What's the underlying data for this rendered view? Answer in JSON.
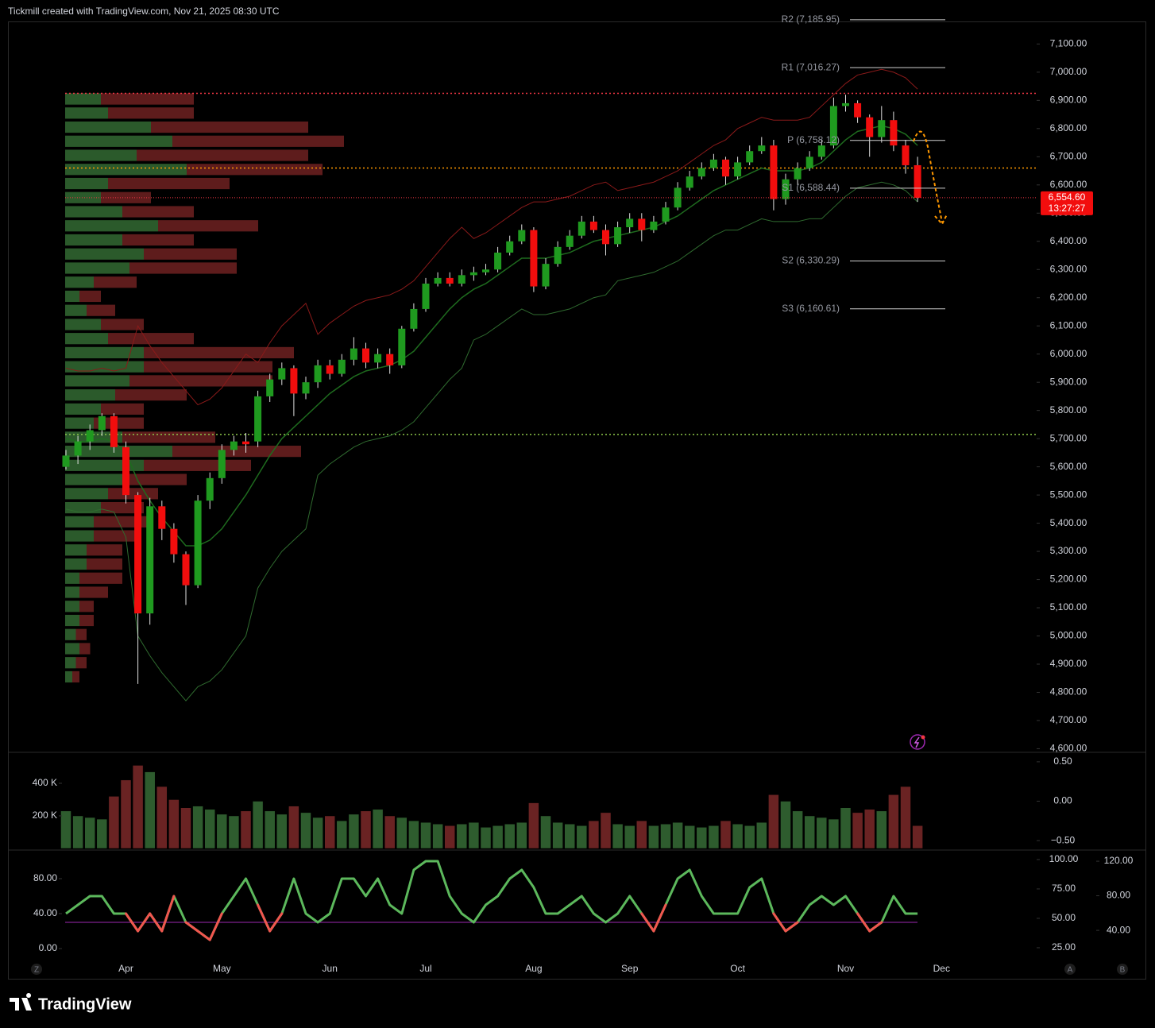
{
  "header": {
    "caption": "Tickmill created with TradingView.com, Nov 21, 2025 08:30 UTC"
  },
  "footer": {
    "brand": "TradingView"
  },
  "axis_buttons": {
    "left": "Z",
    "a": "A",
    "b": "B"
  },
  "chart_data": [
    {
      "type": "candlestick",
      "categories": [
        null,
        null,
        null,
        null,
        null,
        "Apr",
        null,
        null,
        null,
        null,
        null,
        null,
        null,
        "May",
        null,
        null,
        null,
        null,
        null,
        null,
        null,
        null,
        "Jun",
        null,
        null,
        null,
        null,
        null,
        null,
        null,
        "Jul",
        null,
        null,
        null,
        null,
        null,
        null,
        null,
        null,
        "Aug",
        null,
        null,
        null,
        null,
        null,
        null,
        null,
        "Sep",
        null,
        null,
        null,
        null,
        null,
        null,
        null,
        null,
        "Oct",
        null,
        null,
        null,
        null,
        null,
        null,
        null,
        null,
        "Nov",
        null,
        null,
        null,
        null,
        null,
        null,
        null,
        "Dec",
        null,
        null,
        null,
        null,
        null,
        null,
        null
      ],
      "open": [
        5600,
        5640,
        5690,
        5730,
        5780,
        5670,
        5500,
        5080,
        5460,
        5380,
        5290,
        5180,
        5480,
        5560,
        5660,
        5690,
        5690,
        5850,
        5910,
        5950,
        5860,
        5900,
        5960,
        5930,
        5980,
        6020,
        5970,
        6000,
        5960,
        6090,
        6160,
        6250,
        6270,
        6250,
        6280,
        6290,
        6300,
        6360,
        6400,
        6440,
        6240,
        6320,
        6380,
        6420,
        6470,
        6440,
        6390,
        6450,
        6480,
        6440,
        6470,
        6520,
        6590,
        6630,
        6660,
        6690,
        6630,
        6680,
        6720,
        6740,
        6550,
        6620,
        6660,
        6700,
        6740,
        6880,
        6890,
        6840,
        6770,
        6830,
        6740,
        6670,
        null,
        null,
        null,
        null,
        null,
        null,
        null,
        null,
        null
      ],
      "high": [
        5660,
        5710,
        5750,
        5790,
        5790,
        5690,
        5510,
        5490,
        5480,
        5400,
        5300,
        5500,
        5580,
        5680,
        5710,
        5720,
        5870,
        5930,
        5970,
        5960,
        5920,
        5980,
        5980,
        6000,
        6060,
        6040,
        6020,
        6020,
        6100,
        6180,
        6270,
        6290,
        6290,
        6300,
        6310,
        6320,
        6380,
        6420,
        6460,
        6450,
        6340,
        6400,
        6440,
        6490,
        6490,
        6460,
        6470,
        6500,
        6500,
        6490,
        6540,
        6610,
        6650,
        6680,
        6710,
        6700,
        6700,
        6740,
        6770,
        6760,
        6640,
        6680,
        6720,
        6760,
        6910,
        6920,
        6900,
        6850,
        6880,
        6860,
        6760,
        6700,
        null,
        null,
        null,
        null,
        null,
        null,
        null,
        null,
        null
      ],
      "low": [
        5590,
        5610,
        5660,
        5710,
        5650,
        5470,
        4830,
        5040,
        5340,
        5260,
        5110,
        5170,
        5450,
        5540,
        5640,
        5650,
        5670,
        5830,
        5890,
        5780,
        5840,
        5880,
        5910,
        5920,
        5960,
        5950,
        5950,
        5930,
        5950,
        6080,
        6150,
        6240,
        6240,
        6240,
        6260,
        6280,
        6290,
        6350,
        6390,
        6220,
        6230,
        6310,
        6370,
        6410,
        6430,
        6350,
        6380,
        6430,
        6400,
        6430,
        6460,
        6510,
        6580,
        6620,
        6650,
        6600,
        6620,
        6670,
        6710,
        6510,
        6530,
        6600,
        6650,
        6690,
        6730,
        6860,
        6820,
        6700,
        6750,
        6720,
        6640,
        6540,
        null,
        null,
        null,
        null,
        null,
        null,
        null,
        null,
        null
      ],
      "close": [
        5640,
        5690,
        5730,
        5780,
        5670,
        5500,
        5080,
        5460,
        5380,
        5290,
        5180,
        5480,
        5560,
        5660,
        5690,
        5680,
        5850,
        5910,
        5950,
        5860,
        5900,
        5960,
        5930,
        5980,
        6020,
        5970,
        6000,
        5960,
        6090,
        6160,
        6250,
        6270,
        6250,
        6280,
        6290,
        6300,
        6360,
        6400,
        6440,
        6240,
        6320,
        6380,
        6420,
        6470,
        6440,
        6390,
        6450,
        6480,
        6440,
        6470,
        6520,
        6590,
        6630,
        6660,
        6690,
        6630,
        6680,
        6720,
        6740,
        6550,
        6620,
        6660,
        6700,
        6740,
        6880,
        6890,
        6840,
        6770,
        6830,
        6740,
        6670,
        6554.6,
        null,
        null,
        null,
        null,
        null,
        null,
        null,
        null,
        null
      ],
      "up_color": "#1f9a1f",
      "down_color": "#f20d0d",
      "ylim": [
        4590,
        7180
      ],
      "yticks": [
        {
          "value": 4600,
          "label": "4,600.00"
        },
        {
          "value": 4700,
          "label": "4,700.00"
        },
        {
          "value": 4800,
          "label": "4,800.00"
        },
        {
          "value": 4900,
          "label": "4,900.00"
        },
        {
          "value": 5000,
          "label": "5,000.00"
        },
        {
          "value": 5100,
          "label": "5,100.00"
        },
        {
          "value": 5200,
          "label": "5,200.00"
        },
        {
          "value": 5300,
          "label": "5,300.00"
        },
        {
          "value": 5400,
          "label": "5,400.00"
        },
        {
          "value": 5500,
          "label": "5,500.00"
        },
        {
          "value": 5600,
          "label": "5,600.00"
        },
        {
          "value": 5700,
          "label": "5,700.00"
        },
        {
          "value": 5800,
          "label": "5,800.00"
        },
        {
          "value": 5900,
          "label": "5,900.00"
        },
        {
          "value": 6000,
          "label": "6,000.00"
        },
        {
          "value": 6100,
          "label": "6,100.00"
        },
        {
          "value": 6200,
          "label": "6,200.00"
        },
        {
          "value": 6300,
          "label": "6,300.00"
        },
        {
          "value": 6400,
          "label": "6,400.00"
        },
        {
          "value": 6500,
          "label": "6,500.00"
        },
        {
          "value": 6600,
          "label": "6,600.00"
        },
        {
          "value": 6700,
          "label": "6,700.00"
        },
        {
          "value": 6800,
          "label": "6,800.00"
        },
        {
          "value": 6900,
          "label": "6,900.00"
        },
        {
          "value": 7000,
          "label": "7,000.00"
        },
        {
          "value": 7100,
          "label": "7,100.00"
        }
      ],
      "grid": false,
      "overlays": [
        {
          "color": "#8b1a1a",
          "values": [
            5950,
            5940,
            5940,
            5950,
            5940,
            5950,
            6100,
            6030,
            5970,
            5920,
            5870,
            5820,
            5840,
            5880,
            5940,
            6000,
            5970,
            6040,
            6100,
            6140,
            6180,
            6070,
            6110,
            6140,
            6170,
            6190,
            6200,
            6210,
            6230,
            6260,
            6310,
            6360,
            6410,
            6450,
            6410,
            6430,
            6460,
            6490,
            6520,
            6540,
            6540,
            6550,
            6560,
            6580,
            6600,
            6610,
            6580,
            6590,
            6600,
            6610,
            6630,
            6650,
            6680,
            6710,
            6740,
            6760,
            6800,
            6820,
            6840,
            6830,
            6830,
            6830,
            6840,
            6880,
            6920,
            6960,
            6990,
            7000,
            7010,
            7000,
            6980,
            6940,
            null,
            null,
            null,
            null,
            null,
            null,
            null,
            null,
            null
          ]
        },
        {
          "color": "#1e6b1e",
          "values": [
            5700,
            5690,
            5690,
            5700,
            5690,
            5650,
            5550,
            5480,
            5420,
            5370,
            5320,
            5320,
            5340,
            5380,
            5440,
            5500,
            5570,
            5640,
            5700,
            5740,
            5780,
            5820,
            5860,
            5890,
            5920,
            5940,
            5950,
            5960,
            5980,
            6010,
            6060,
            6110,
            6160,
            6200,
            6230,
            6250,
            6280,
            6310,
            6340,
            6340,
            6340,
            6350,
            6360,
            6380,
            6400,
            6410,
            6420,
            6430,
            6440,
            6450,
            6470,
            6490,
            6520,
            6550,
            6580,
            6600,
            6620,
            6640,
            6660,
            6650,
            6650,
            6650,
            6660,
            6680,
            6720,
            6760,
            6790,
            6800,
            6810,
            6800,
            6780,
            6740,
            null,
            null,
            null,
            null,
            null,
            null,
            null,
            null,
            null
          ]
        },
        {
          "color": "#2f6b2f",
          "values": [
            5450,
            5440,
            5440,
            5450,
            5440,
            5350,
            5000,
            4930,
            4870,
            4820,
            4770,
            4820,
            4840,
            4880,
            4940,
            5000,
            5170,
            5240,
            5300,
            5340,
            5380,
            5570,
            5610,
            5640,
            5670,
            5690,
            5700,
            5710,
            5730,
            5760,
            5810,
            5860,
            5910,
            5950,
            6050,
            6070,
            6100,
            6130,
            6160,
            6140,
            6140,
            6150,
            6160,
            6180,
            6200,
            6210,
            6260,
            6270,
            6280,
            6290,
            6310,
            6330,
            6360,
            6390,
            6420,
            6440,
            6440,
            6460,
            6480,
            6470,
            6470,
            6470,
            6480,
            6480,
            6520,
            6560,
            6590,
            6600,
            6610,
            6600,
            6580,
            6540,
            null,
            null,
            null,
            null,
            null,
            null,
            null,
            null,
            null
          ]
        }
      ],
      "volume_profile": {
        "up_color": "#2b5a2b",
        "down_color": "#5e1c1c",
        "prices": [
          6900,
          6850,
          6800,
          6750,
          6700,
          6650,
          6600,
          6550,
          6500,
          6450,
          6400,
          6350,
          6300,
          6250,
          6200,
          6150,
          6100,
          6050,
          6000,
          5950,
          5900,
          5850,
          5800,
          5750,
          5700,
          5650,
          5600,
          5550,
          5500,
          5450,
          5400,
          5350,
          5300,
          5250,
          5200,
          5150,
          5100,
          5050,
          5000,
          4950,
          4900,
          4850
        ],
        "up": [
          50,
          60,
          120,
          150,
          100,
          170,
          60,
          50,
          80,
          130,
          80,
          110,
          90,
          40,
          20,
          30,
          50,
          60,
          110,
          110,
          90,
          70,
          50,
          40,
          80,
          150,
          110,
          80,
          60,
          50,
          40,
          40,
          30,
          30,
          20,
          20,
          20,
          20,
          15,
          20,
          15,
          10
        ],
        "down": [
          130,
          120,
          220,
          240,
          240,
          190,
          170,
          70,
          100,
          140,
          100,
          130,
          150,
          60,
          30,
          40,
          60,
          120,
          210,
          180,
          200,
          100,
          60,
          70,
          130,
          180,
          150,
          90,
          70,
          60,
          80,
          60,
          50,
          50,
          60,
          40,
          20,
          20,
          15,
          15,
          15,
          10
        ]
      },
      "hlines": [
        {
          "value": 6925,
          "color": "#f23645"
        },
        {
          "value": 6660,
          "color": "#ff9800"
        },
        {
          "value": 5715,
          "color": "#8bc34a"
        }
      ],
      "pivots": [
        {
          "label": "R2 (7,185.95)",
          "value": 7185.95
        },
        {
          "label": "R1 (7,016.27)",
          "value": 7016.27
        },
        {
          "label": "P (6,758.12)",
          "value": 6758.12
        },
        {
          "label": "S1 (6,588.44)",
          "value": 6588.44
        },
        {
          "label": "S2 (6,330.29)",
          "value": 6330.29
        },
        {
          "label": "S3 (6,160.61)",
          "value": 6160.61
        }
      ],
      "last_price": {
        "value": 6554.6,
        "label": "6,554.60"
      },
      "countdown": "13:27:27"
    },
    {
      "type": "bar",
      "values": [
        230000,
        200000,
        190000,
        180000,
        320000,
        420000,
        510000,
        470000,
        380000,
        300000,
        250000,
        260000,
        240000,
        210000,
        200000,
        230000,
        290000,
        230000,
        210000,
        260000,
        220000,
        190000,
        200000,
        170000,
        210000,
        230000,
        240000,
        200000,
        190000,
        170000,
        160000,
        150000,
        140000,
        150000,
        160000,
        130000,
        140000,
        150000,
        160000,
        280000,
        200000,
        160000,
        150000,
        140000,
        170000,
        220000,
        150000,
        140000,
        170000,
        140000,
        150000,
        160000,
        140000,
        130000,
        140000,
        170000,
        150000,
        140000,
        160000,
        330000,
        290000,
        230000,
        200000,
        190000,
        180000,
        250000,
        220000,
        240000,
        230000,
        330000,
        380000,
        140000,
        null,
        null,
        null,
        null,
        null,
        null,
        null,
        null,
        null
      ],
      "up_color": "#2e5c2e",
      "down_color": "#6a2323",
      "ylim": [
        0,
        590000
      ],
      "yticks": [
        {
          "value": 200000,
          "label": "200 K"
        },
        {
          "value": 400000,
          "label": "400 K"
        }
      ],
      "y2lim": [
        -0.62,
        0.62
      ],
      "y2ticks": [
        {
          "value": 0.5,
          "label": "0.50"
        },
        {
          "value": 0,
          "label": "0.00"
        },
        {
          "value": -0.5,
          "label": "−0.50"
        }
      ]
    },
    {
      "type": "line",
      "values": [
        40,
        50,
        60,
        60,
        40,
        40,
        20,
        40,
        20,
        60,
        30,
        20,
        10,
        40,
        60,
        80,
        50,
        20,
        40,
        80,
        40,
        30,
        40,
        80,
        80,
        60,
        80,
        50,
        40,
        90,
        100,
        100,
        60,
        40,
        30,
        50,
        60,
        80,
        90,
        70,
        40,
        40,
        50,
        60,
        40,
        30,
        40,
        60,
        40,
        20,
        50,
        80,
        90,
        60,
        40,
        40,
        40,
        70,
        80,
        40,
        20,
        30,
        50,
        60,
        50,
        60,
        40,
        20,
        30,
        60,
        40,
        40,
        null,
        null,
        null,
        null,
        null,
        null,
        null,
        null,
        null
      ],
      "color": "#5cb85c",
      "below_color": "#f0564f",
      "levels": [
        30
      ],
      "level_color": "#9c27b0",
      "ylim": [
        -34.5,
        111.8
      ],
      "yticks": [
        {
          "value": 0,
          "label": "0.00"
        },
        {
          "value": 40,
          "label": "40.00"
        },
        {
          "value": 80,
          "label": "80.00"
        }
      ],
      "y2lim": [
        -1.4,
        107.4
      ],
      "y2ticks": [
        {
          "value": 25,
          "label": "25.00"
        },
        {
          "value": 50,
          "label": "50.00"
        },
        {
          "value": 75,
          "label": "75.00"
        },
        {
          "value": 100,
          "label": "100.00"
        }
      ],
      "y3lim": [
        -16,
        132
      ],
      "y3ticks": [
        {
          "value": 40,
          "label": "40.00"
        },
        {
          "value": 80,
          "label": "80.00"
        },
        {
          "value": 120,
          "label": "120.00"
        }
      ]
    }
  ]
}
